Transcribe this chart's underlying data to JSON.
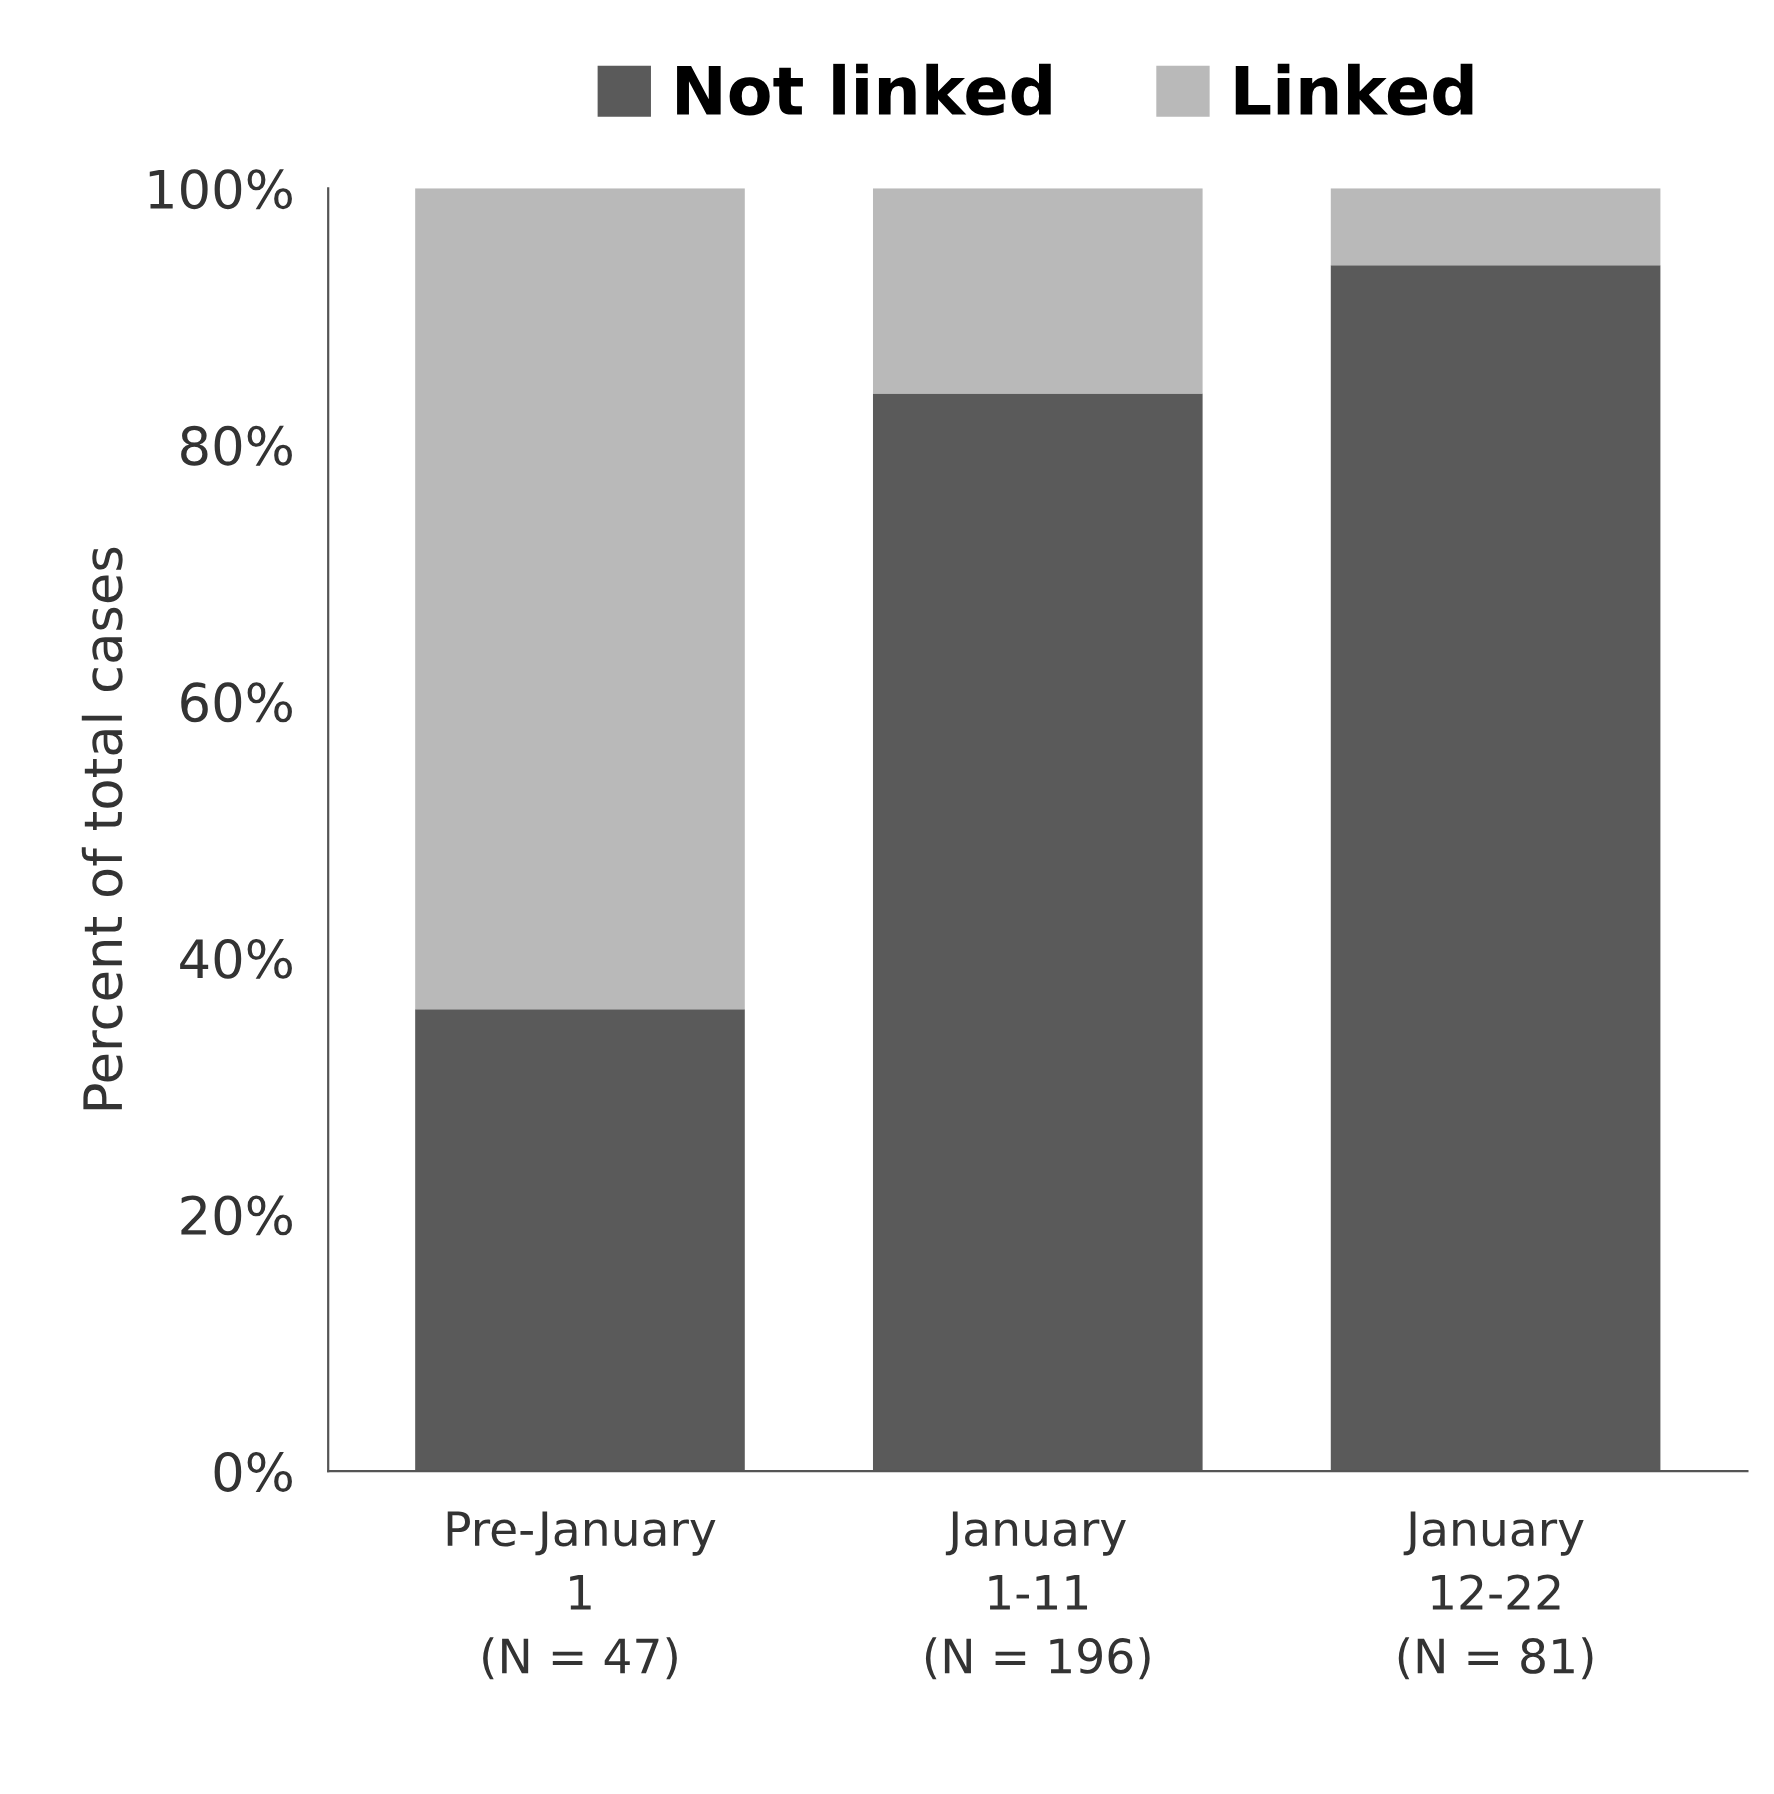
{
  "chart_data": {
    "type": "bar",
    "stacked": true,
    "ylabel": "Percent of total cases",
    "categories": [
      "Pre-January\n1\n(N = 47)",
      "January\n1-11\n(N = 196)",
      "January\n12-22\n(N = 81)"
    ],
    "series": [
      {
        "name": "Not linked",
        "color": "#5a5a5a",
        "values": [
          36,
          84,
          94
        ]
      },
      {
        "name": "Linked",
        "color": "#b9b9b9",
        "values": [
          64,
          16,
          6
        ]
      }
    ],
    "ylim": [
      0,
      100
    ],
    "yticks": [
      {
        "value": 0,
        "label": "0%"
      },
      {
        "value": 20,
        "label": "20%"
      },
      {
        "value": 40,
        "label": "40%"
      },
      {
        "value": 60,
        "label": "60%"
      },
      {
        "value": 80,
        "label": "80%"
      },
      {
        "value": 100,
        "label": "100%"
      }
    ],
    "grid": false,
    "legend": "top"
  }
}
